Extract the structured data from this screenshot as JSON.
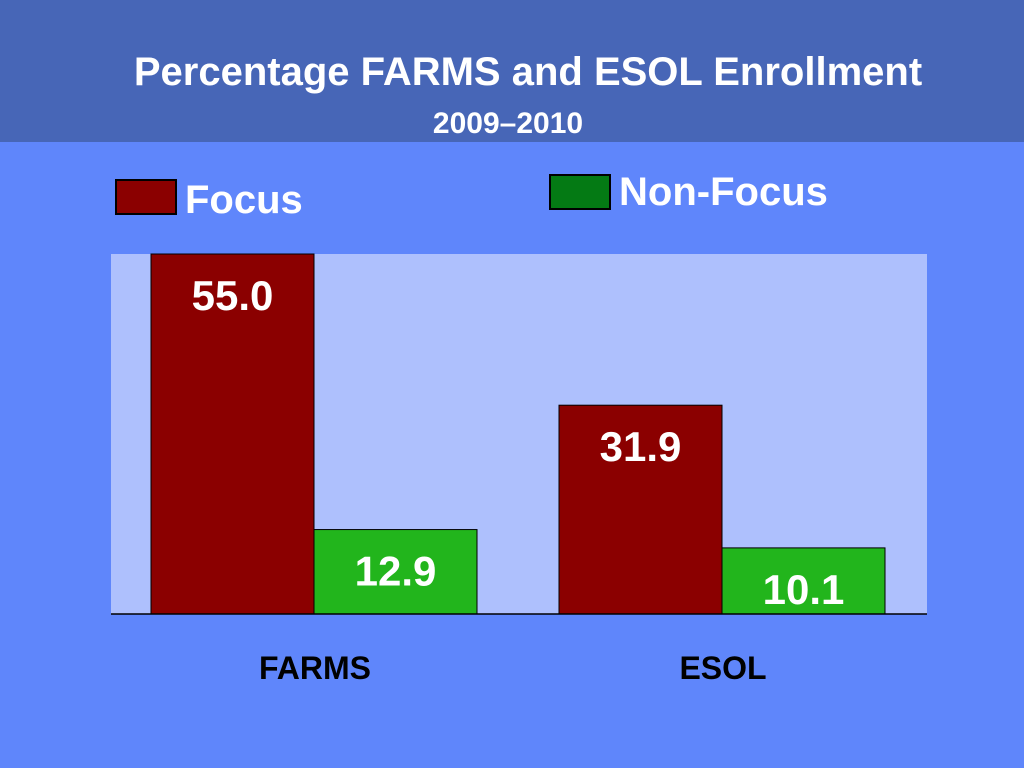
{
  "chart_data": {
    "type": "bar",
    "title": "Percentage FARMS and ESOL Enrollment",
    "subtitle": "2009–2010",
    "xlabel": "",
    "ylabel": "",
    "ylim": [
      0,
      55
    ],
    "grid": false,
    "legend_placement": "top",
    "categories": [
      "FARMS",
      "ESOL"
    ],
    "series": [
      {
        "name": "Focus",
        "values": [
          55.0,
          31.9
        ],
        "value_labels": [
          "55.0",
          "31.9"
        ],
        "color": "#8b0000"
      },
      {
        "name": "Non-Focus",
        "values": [
          12.9,
          10.1
        ],
        "value_labels": [
          "12.9",
          "10.1"
        ],
        "color": "#22b51c"
      }
    ],
    "colors": {
      "background": "#5f86fb",
      "title_band": "#4766b7",
      "plot_area": "#aec0fd",
      "legend_non_focus_swatch": "#047a14"
    }
  }
}
